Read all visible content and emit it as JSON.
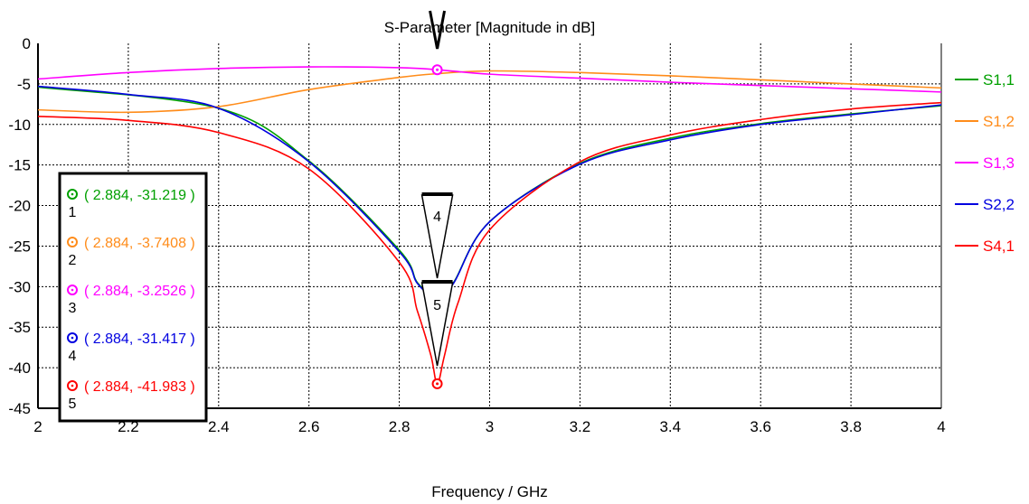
{
  "chart_data": {
    "type": "line",
    "title": "S-Parameter [Magnitude in dB]",
    "xlabel": "Frequency / GHz",
    "ylabel": "",
    "xlim": [
      2,
      4
    ],
    "ylim": [
      -45,
      0
    ],
    "x_ticks": [
      "2",
      "2.2",
      "2.4",
      "2.6",
      "2.8",
      "3",
      "3.2",
      "3.4",
      "3.6",
      "3.8",
      "4"
    ],
    "y_ticks": [
      "0",
      "-5",
      "-10",
      "-15",
      "-20",
      "-25",
      "-30",
      "-35",
      "-40",
      "-45"
    ],
    "grid": true,
    "legend_position": "right",
    "series": [
      {
        "name": "S1,1",
        "color": "#00a000",
        "x": [
          2,
          2.4,
          2.6,
          2.8,
          2.84,
          2.884,
          2.92,
          3.0,
          3.2,
          3.4,
          3.6,
          3.8,
          4
        ],
        "y": [
          -5.4,
          -8.0,
          -14.5,
          -25.5,
          -29.5,
          -31.2,
          -29.5,
          -22.0,
          -14.8,
          -11.7,
          -9.9,
          -8.7,
          -7.7
        ]
      },
      {
        "name": "S1,2",
        "color": "#ff8c1a",
        "x": [
          2,
          2.2,
          2.4,
          2.6,
          2.8,
          2.884,
          3.0,
          3.2,
          3.4,
          3.6,
          3.8,
          4
        ],
        "y": [
          -8.2,
          -8.5,
          -7.8,
          -5.7,
          -4.2,
          -3.74,
          -3.4,
          -3.6,
          -4.0,
          -4.5,
          -5.0,
          -5.5
        ]
      },
      {
        "name": "S1,3",
        "color": "#ff00ff",
        "x": [
          2,
          2.2,
          2.4,
          2.6,
          2.8,
          2.884,
          3.0,
          3.2,
          3.4,
          3.6,
          3.8,
          4
        ],
        "y": [
          -4.4,
          -3.6,
          -3.1,
          -2.9,
          -3.0,
          -3.25,
          -3.8,
          -4.3,
          -4.8,
          -5.2,
          -5.6,
          -6.0
        ]
      },
      {
        "name": "S2,2",
        "color": "#0000e0",
        "x": [
          2,
          2.2,
          2.4,
          2.6,
          2.8,
          2.84,
          2.884,
          2.92,
          3.0,
          3.2,
          3.4,
          3.6,
          3.8,
          4
        ],
        "y": [
          -5.3,
          -6.3,
          -8.0,
          -14.6,
          -25.7,
          -29.6,
          -31.4,
          -29.6,
          -22.0,
          -14.9,
          -11.9,
          -10.0,
          -8.8,
          -7.6
        ]
      },
      {
        "name": "S4,1",
        "color": "#ff0000",
        "x": [
          2,
          2.2,
          2.4,
          2.6,
          2.8,
          2.84,
          2.87,
          2.884,
          2.9,
          2.93,
          3.0,
          3.2,
          3.4,
          3.6,
          3.8,
          4
        ],
        "y": [
          -9.0,
          -9.5,
          -11.0,
          -15.5,
          -27.0,
          -33.0,
          -38.5,
          -41.983,
          -38.5,
          -32.0,
          -23.0,
          -14.6,
          -11.3,
          -9.4,
          -8.1,
          -7.3
        ]
      }
    ],
    "markers": [
      {
        "id": "1",
        "series": "S1,1",
        "x": 2.884,
        "y": -31.219,
        "label": "( 2.884, -31.219 )",
        "color": "#00a000"
      },
      {
        "id": "2",
        "series": "S1,2",
        "x": 2.884,
        "y": -3.7408,
        "label": "( 2.884, -3.7408 )",
        "color": "#ff8c1a"
      },
      {
        "id": "3",
        "series": "S1,3",
        "x": 2.884,
        "y": -3.2526,
        "label": "( 2.884, -3.2526 )",
        "color": "#ff00ff"
      },
      {
        "id": "4",
        "series": "S2,2",
        "x": 2.884,
        "y": -31.417,
        "label": "( 2.884, -31.417 )",
        "color": "#0000e0"
      },
      {
        "id": "5",
        "series": "S4,1",
        "x": 2.884,
        "y": -41.983,
        "label": "( 2.884, -41.983 )",
        "color": "#ff0000"
      }
    ]
  }
}
